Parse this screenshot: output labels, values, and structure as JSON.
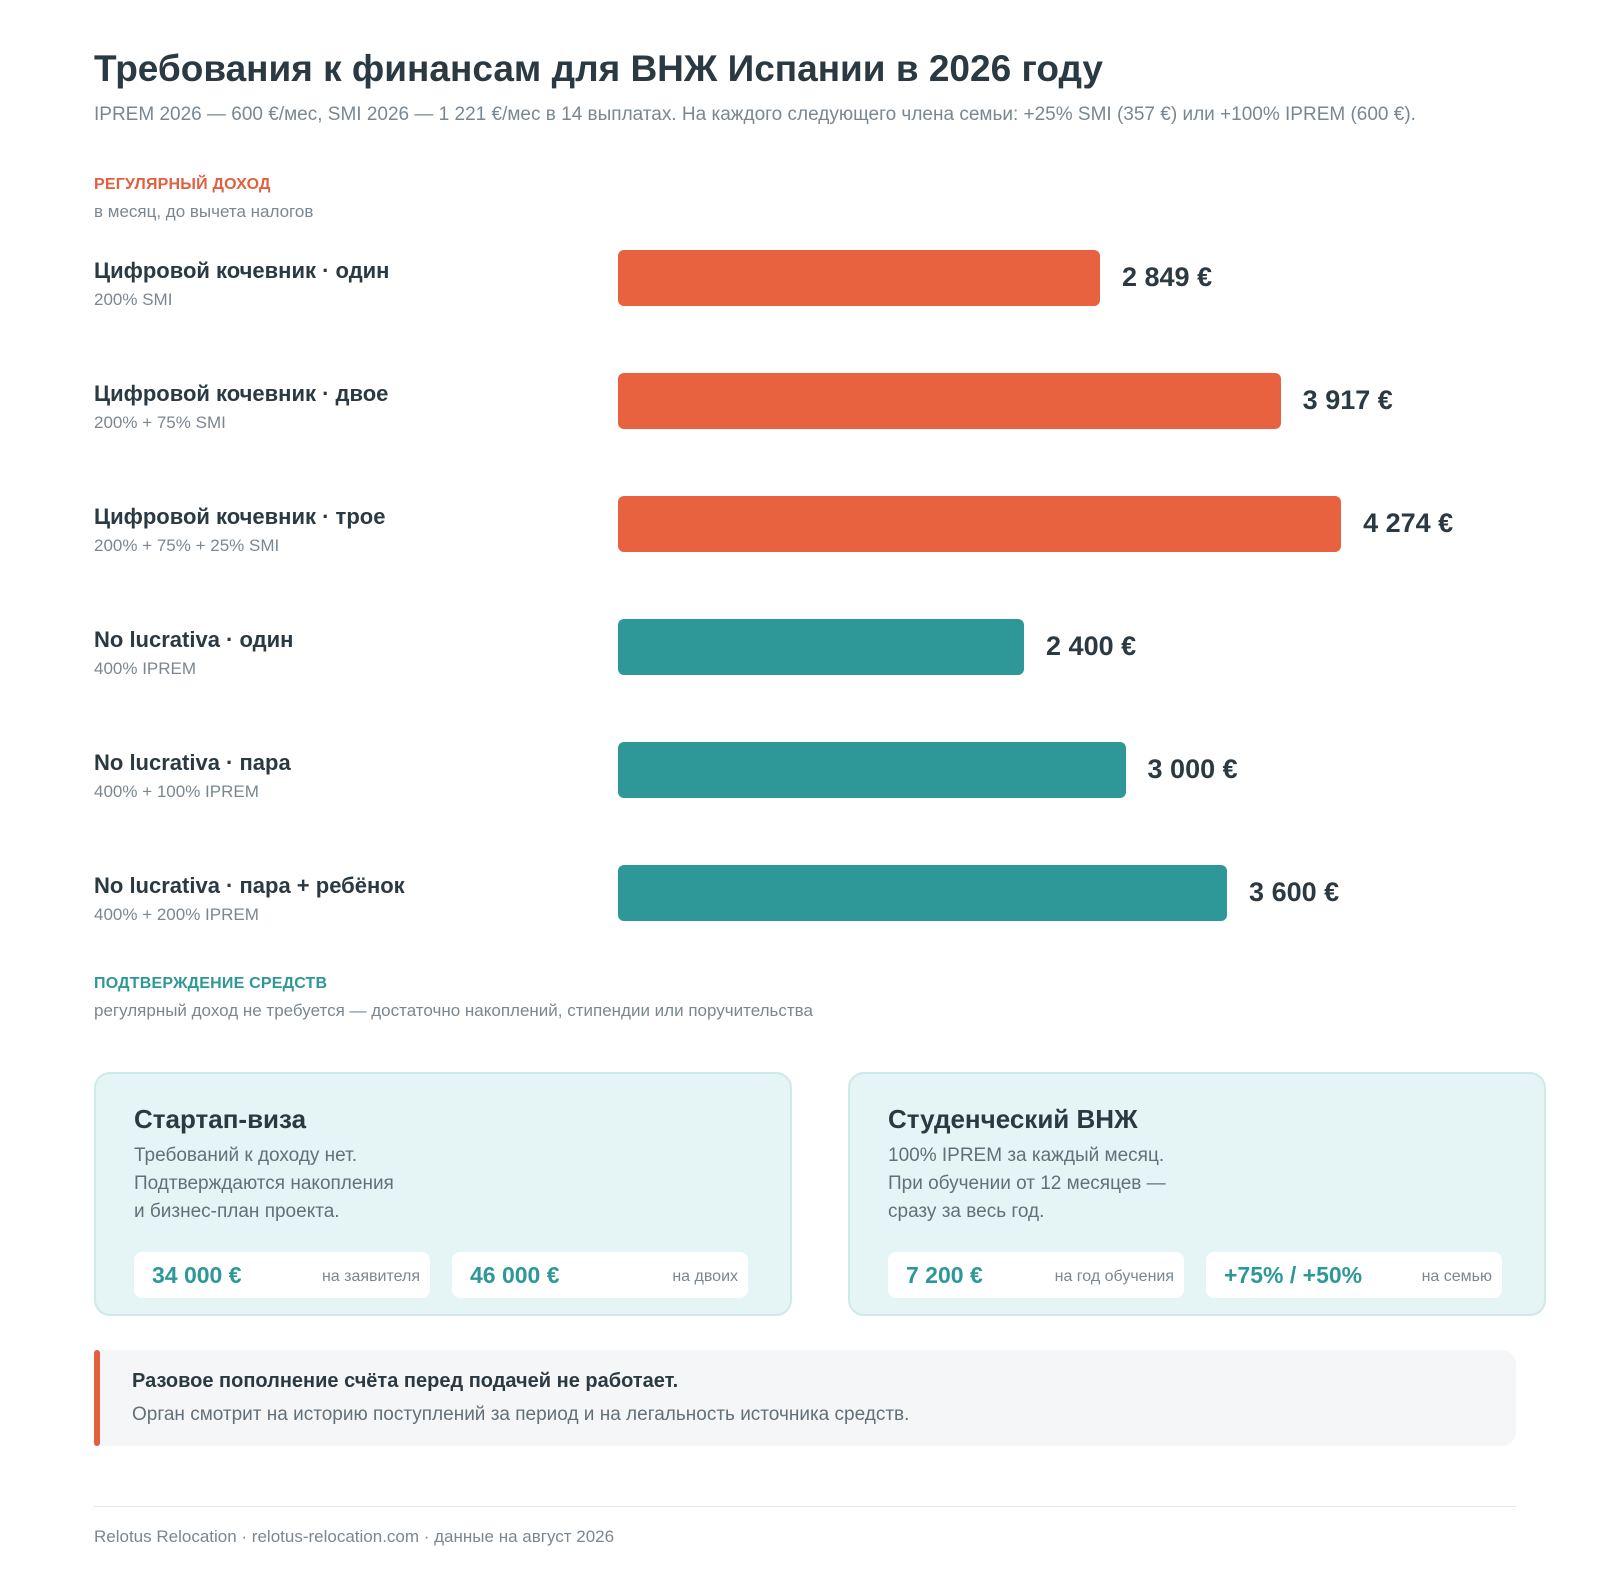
{
  "header": {
    "title": "Требования к финансам для ВНЖ Испании в 2026 году",
    "subtitle": "IPREM 2026 — 600 €/мес, SMI 2026 — 1 221 €/мес в 14 выплатах. На каждого следующего члена семьи: +25% SMI (357 €) или +100% IPREM (600 €)."
  },
  "income_section": {
    "heading": "Регулярный доход",
    "subheading": "в месяц, до вычета налогов",
    "color": "#e06040"
  },
  "chart_data": {
    "type": "bar",
    "orientation": "horizontal",
    "unit": "€",
    "xlim": [
      0,
      5000
    ],
    "categories": [
      "Цифровой кочевник · один",
      "Цифровой кочевник · двое",
      "Цифровой кочевник · трое",
      "No lucrativa · один",
      "No lucrativa · пара",
      "No lucrativa · пара + ребёнок"
    ],
    "formulas": [
      "200% SMI",
      "200% + 75% SMI",
      "200% + 75% + 25% SMI",
      "400% IPREM",
      "400% + 100% IPREM",
      "400% + 200% IPREM"
    ],
    "values": [
      2849,
      3917,
      4274,
      2400,
      3000,
      3600
    ],
    "value_labels": [
      "2 849 €",
      "3 917 €",
      "4 274 €",
      "2 400 €",
      "3 000 €",
      "3 600 €"
    ],
    "colors": [
      "#e86240",
      "#e86240",
      "#e86240",
      "#2e9898",
      "#2e9898",
      "#2e9898"
    ]
  },
  "funds_section": {
    "heading": "Подтверждение средств",
    "subheading": "регулярный доход не требуется — достаточно накоплений, стипендии или поручительства",
    "color": "#2e9898"
  },
  "cards": [
    {
      "title": "Стартап-виза",
      "lines": [
        "Требований к доходу нет.",
        "Подтверждаются накопления",
        "и бизнес-план проекта."
      ],
      "pills": [
        {
          "value": "34 000 €",
          "note": "на заявителя"
        },
        {
          "value": "46 000 €",
          "note": "на двоих"
        }
      ]
    },
    {
      "title": "Студенческий ВНЖ",
      "lines": [
        "100% IPREM за каждый месяц.",
        "При обучении от 12 месяцев —",
        "сразу за весь год."
      ],
      "pills": [
        {
          "value": "7 200 €",
          "note": "на год обучения"
        },
        {
          "value": "+75% / +50%",
          "note": "на семью"
        }
      ]
    }
  ],
  "warning": {
    "title": "Разовое пополнение счёта перед подачей не работает.",
    "text": "Орган смотрит на историю поступлений за период и на легальность источника средств.",
    "accent": "#e06040"
  },
  "footer": {
    "text": "Relotus Relocation · relotus-relocation.com · данные на август 2026"
  }
}
